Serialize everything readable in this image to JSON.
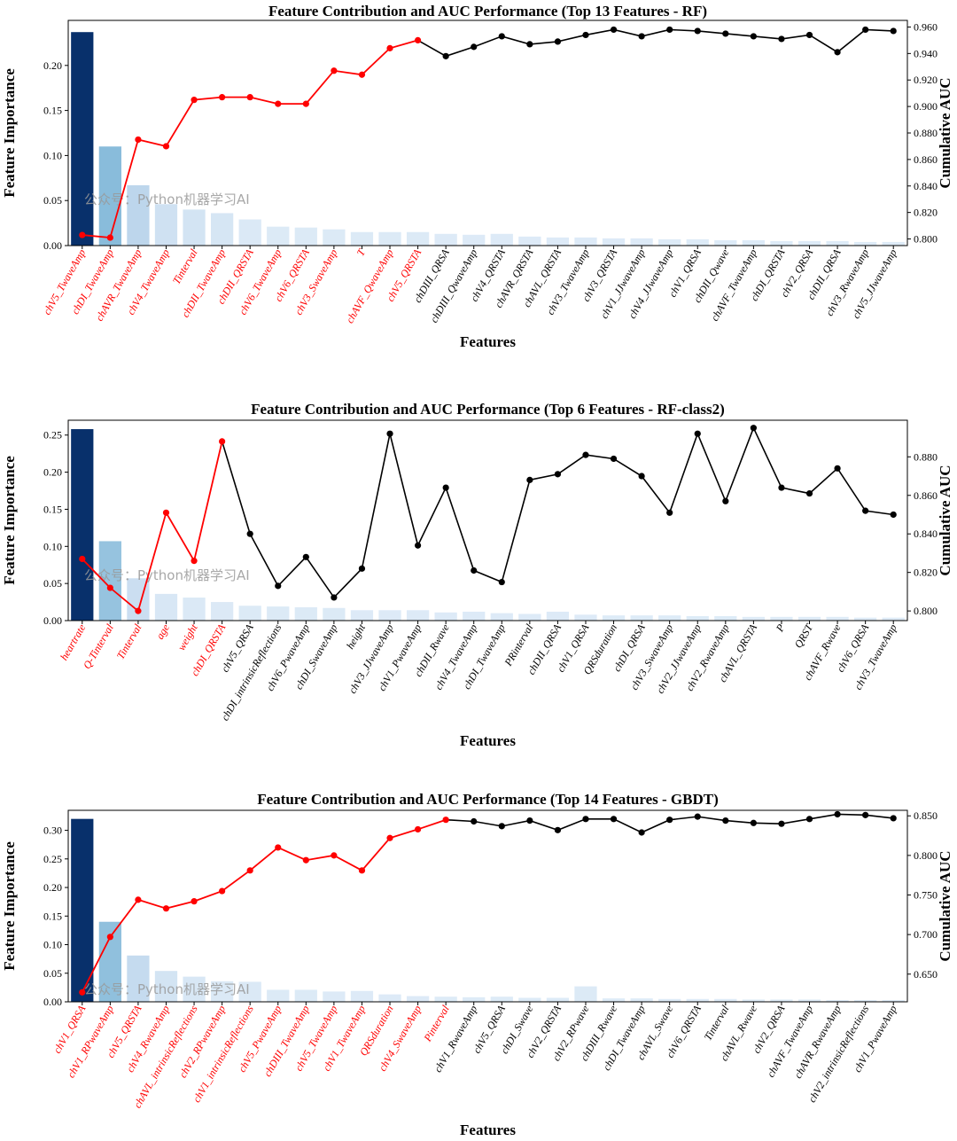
{
  "watermark": "公众号：Python机器学习AI",
  "chart_data": [
    {
      "type": "bar+line",
      "title": "Feature Contribution and AUC Performance (Top 13 Features - RF)",
      "xlabel": "Features",
      "ylabel_left": "Feature Importance",
      "ylabel_right": "Cumulative AUC",
      "top_n": 13,
      "y_left_range": [
        0,
        0.25
      ],
      "y_left_ticks": [
        "0.00",
        "0.05",
        "0.10",
        "0.15",
        "0.20"
      ],
      "y_right_range": [
        0.795,
        0.965
      ],
      "y_right_ticks": [
        "0.800",
        "0.820",
        "0.840",
        "0.860",
        "0.880",
        "0.900",
        "0.920",
        "0.940",
        "0.960"
      ],
      "categories": [
        "chV5_TwaveAmp",
        "chDI_TwaveAmp",
        "chAVR_TwaveAmp",
        "chV4_TwaveAmp",
        "Tinterval",
        "chDII_TwaveAmp",
        "chDII_QRSTA",
        "chV6_TwaveAmp",
        "chV6_QRSTA",
        "chV3_SwaveAmp",
        "T",
        "chAVF_QwaveAmp",
        "chV5_QRSTA",
        "chDIII_QRSA",
        "chDIII_QwaveAmp",
        "chV4_QRSTA",
        "chAVR_QRSTA",
        "chAVL_QRSTA",
        "chV3_TwaveAmp",
        "chV3_QRSTA",
        "chV1_JJwaveAmp",
        "chV4_JJwaveAmp",
        "chV1_QRSA",
        "chDII_Qwave",
        "chAVF_TwaveAmp",
        "chDI_QRSTA",
        "chV2_QRSA",
        "chDII_QRSA",
        "chV3_RwaveAmp",
        "chV5_JJwaveAmp"
      ],
      "importance": [
        0.237,
        0.11,
        0.067,
        0.046,
        0.04,
        0.036,
        0.029,
        0.021,
        0.02,
        0.018,
        0.015,
        0.015,
        0.015,
        0.013,
        0.012,
        0.013,
        0.01,
        0.009,
        0.009,
        0.008,
        0.008,
        0.007,
        0.007,
        0.006,
        0.006,
        0.005,
        0.005,
        0.005,
        0.004,
        0.004
      ],
      "cumulative_auc": [
        0.803,
        0.801,
        0.875,
        0.87,
        0.905,
        0.907,
        0.907,
        0.902,
        0.902,
        0.927,
        0.924,
        0.944,
        0.95,
        0.938,
        0.945,
        0.953,
        0.947,
        0.949,
        0.954,
        0.958,
        0.953,
        0.958,
        0.957,
        0.955,
        0.953,
        0.951,
        0.954,
        0.941,
        0.958,
        0.957
      ]
    },
    {
      "type": "bar+line",
      "title": "Feature Contribution and AUC Performance (Top 6 Features - RF-class2)",
      "xlabel": "Features",
      "ylabel_left": "Feature Importance",
      "ylabel_right": "Cumulative AUC",
      "top_n": 6,
      "y_left_range": [
        0,
        0.27
      ],
      "y_left_ticks": [
        "0.00",
        "0.05",
        "0.10",
        "0.15",
        "0.20",
        "0.25"
      ],
      "y_right_range": [
        0.795,
        0.899
      ],
      "y_right_ticks": [
        "0.800",
        "0.820",
        "0.840",
        "0.860",
        "0.880"
      ],
      "categories": [
        "heartrate",
        "Q-Tinterval",
        "Tinterval",
        "age",
        "weight",
        "chDI_QRSTA",
        "chV5_QRSA",
        "chDI_intrinsicReflections",
        "chV6_PwaveAmp",
        "chDI_SwaveAmp",
        "height",
        "chV3_JJwaveAmp",
        "chV1_PwaveAmp",
        "chDII_Rwave",
        "chV4_TwaveAmp",
        "chDI_TwaveAmp",
        "PRinterval",
        "chDII_QRSA",
        "chV1_QRSA",
        "QRSduration",
        "chDI_QRSA",
        "chV3_SwaveAmp",
        "chV2_JJwaveAmp",
        "chV2_RwaveAmp",
        "chAVL_QRSTA",
        "P",
        "QRST",
        "chAVF_Rwave",
        "chV6_QRSA",
        "chV3_TwaveAmp"
      ],
      "importance": [
        0.258,
        0.107,
        0.057,
        0.036,
        0.031,
        0.025,
        0.02,
        0.019,
        0.018,
        0.017,
        0.014,
        0.014,
        0.014,
        0.011,
        0.012,
        0.01,
        0.009,
        0.012,
        0.008,
        0.007,
        0.007,
        0.007,
        0.006,
        0.006,
        0.005,
        0.005,
        0.005,
        0.005,
        0.004,
        0.004
      ],
      "cumulative_auc": [
        0.827,
        0.812,
        0.8,
        0.851,
        0.826,
        0.888,
        0.84,
        0.813,
        0.828,
        0.807,
        0.822,
        0.892,
        0.834,
        0.864,
        0.821,
        0.815,
        0.868,
        0.871,
        0.881,
        0.879,
        0.87,
        0.851,
        0.892,
        0.857,
        0.895,
        0.864,
        0.861,
        0.874,
        0.852,
        0.85
      ]
    },
    {
      "type": "bar+line",
      "title": "Feature Contribution and AUC Performance (Top 14 Features - GBDT)",
      "xlabel": "Features",
      "ylabel_left": "Feature Importance",
      "ylabel_right": "Cumulative AUC",
      "top_n": 14,
      "y_left_range": [
        0,
        0.335
      ],
      "y_left_ticks": [
        "0.00",
        "0.05",
        "0.10",
        "0.15",
        "0.20",
        "0.25",
        "0.30"
      ],
      "y_right_range": [
        0.615,
        0.857
      ],
      "y_right_ticks": [
        "0.650",
        "0.700",
        "0.750",
        "0.800",
        "0.850"
      ],
      "categories": [
        "chV1_QRSA",
        "chV1_RPwaveAmp",
        "chV5_QRSTA",
        "chV4_RwaveAmp",
        "chAVL_intrinsicReflections",
        "chV2_RPwaveAmp",
        "chV1_intrinsicReflections",
        "chV5_PwaveAmp",
        "chDIII_TwaveAmp",
        "chV5_TwaveAmp",
        "chV1_TwaveAmp",
        "QRSduration",
        "chV4_SwaveAmp",
        "Pinterval",
        "chV1_RwaveAmp",
        "chV5_QRSA",
        "chDI_Swave",
        "chV2_QRSTA",
        "chV2_RPwave",
        "chDIII_Rwave",
        "chDI_TwaveAmp",
        "chAVL_Swave",
        "chV6_QRSTA",
        "Tinterval",
        "chAVL_Rwave",
        "chV2_QRSA",
        "chAVF_TwaveAmp",
        "chAVR_RwaveAmp",
        "chV2_intrinsicReflections",
        "chV1_PwaveAmp"
      ],
      "importance": [
        0.32,
        0.14,
        0.081,
        0.054,
        0.044,
        0.036,
        0.035,
        0.021,
        0.021,
        0.018,
        0.019,
        0.013,
        0.01,
        0.009,
        0.008,
        0.009,
        0.007,
        0.007,
        0.027,
        0.006,
        0.006,
        0.005,
        0.005,
        0.005,
        0.004,
        0.004,
        0.004,
        0.003,
        0.003,
        0.003
      ],
      "cumulative_auc": [
        0.627,
        0.697,
        0.744,
        0.733,
        0.742,
        0.755,
        0.781,
        0.81,
        0.794,
        0.8,
        0.781,
        0.822,
        0.833,
        0.845,
        0.843,
        0.837,
        0.844,
        0.832,
        0.846,
        0.846,
        0.829,
        0.845,
        0.849,
        0.844,
        0.841,
        0.84,
        0.846,
        0.852,
        0.851,
        0.847
      ]
    }
  ]
}
